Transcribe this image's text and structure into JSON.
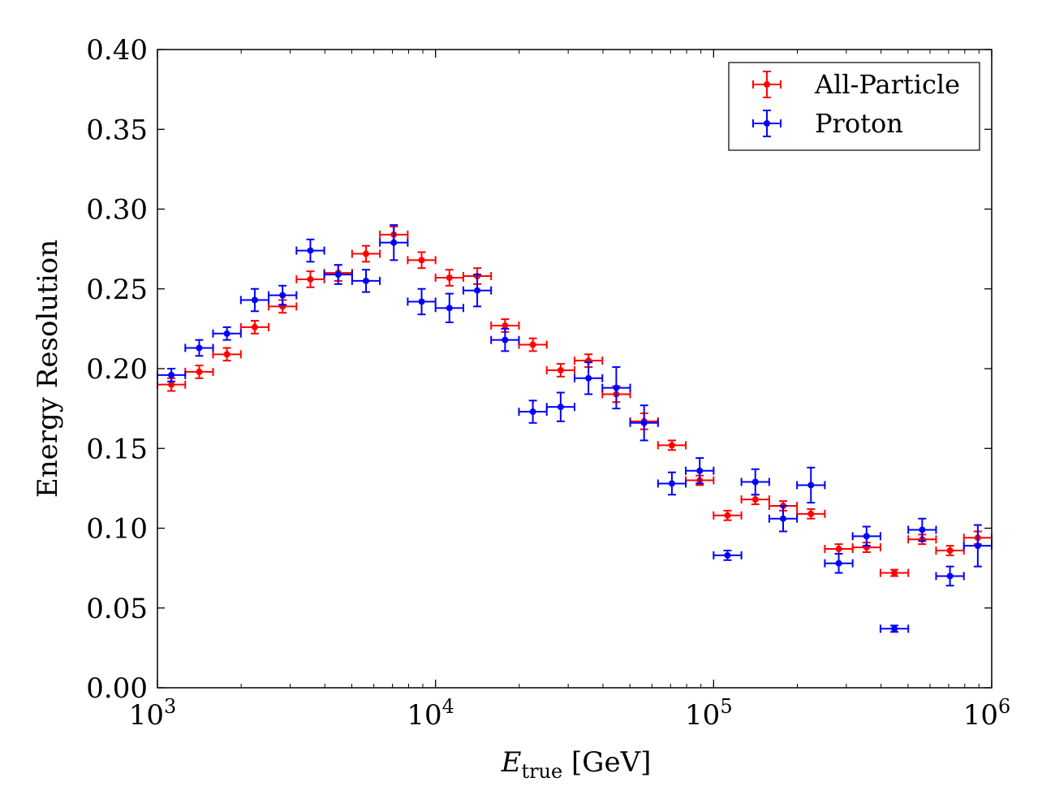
{
  "chart_data": {
    "type": "scatter",
    "title": "",
    "xlabel_main": "E",
    "xlabel_sub": "true",
    "xlabel_unit": " [GeV]",
    "ylabel": "Energy Resolution",
    "xscale": "log",
    "xlim": [
      1000,
      1000000
    ],
    "ylim": [
      0,
      0.4
    ],
    "xticks": [
      {
        "value": 1000,
        "base": "10",
        "exp": "3"
      },
      {
        "value": 10000,
        "base": "10",
        "exp": "4"
      },
      {
        "value": 100000,
        "base": "10",
        "exp": "5"
      },
      {
        "value": 1000000,
        "base": "10",
        "exp": "6"
      }
    ],
    "yticks": [
      {
        "value": 0.0,
        "label": "0.00"
      },
      {
        "value": 0.05,
        "label": "0.05"
      },
      {
        "value": 0.1,
        "label": "0.10"
      },
      {
        "value": 0.15,
        "label": "0.15"
      },
      {
        "value": 0.2,
        "label": "0.20"
      },
      {
        "value": 0.25,
        "label": "0.25"
      },
      {
        "value": 0.3,
        "label": "0.30"
      },
      {
        "value": 0.35,
        "label": "0.35"
      },
      {
        "value": 0.4,
        "label": "0.40"
      }
    ],
    "legend_position": "top-right",
    "series": [
      {
        "name": "All-Particle",
        "color": "#ff0000",
        "points": [
          {
            "x": 1122,
            "y": 0.19,
            "yerr": 0.004
          },
          {
            "x": 1413,
            "y": 0.198,
            "yerr": 0.004
          },
          {
            "x": 1778,
            "y": 0.209,
            "yerr": 0.004
          },
          {
            "x": 2239,
            "y": 0.226,
            "yerr": 0.004
          },
          {
            "x": 2818,
            "y": 0.239,
            "yerr": 0.004
          },
          {
            "x": 3548,
            "y": 0.256,
            "yerr": 0.005
          },
          {
            "x": 4467,
            "y": 0.26,
            "yerr": 0.005
          },
          {
            "x": 5623,
            "y": 0.272,
            "yerr": 0.005
          },
          {
            "x": 7079,
            "y": 0.284,
            "yerr": 0.005
          },
          {
            "x": 8913,
            "y": 0.268,
            "yerr": 0.005
          },
          {
            "x": 11220,
            "y": 0.257,
            "yerr": 0.005
          },
          {
            "x": 14125,
            "y": 0.258,
            "yerr": 0.005
          },
          {
            "x": 17783,
            "y": 0.227,
            "yerr": 0.004
          },
          {
            "x": 22387,
            "y": 0.215,
            "yerr": 0.004
          },
          {
            "x": 28184,
            "y": 0.199,
            "yerr": 0.004
          },
          {
            "x": 35481,
            "y": 0.205,
            "yerr": 0.004
          },
          {
            "x": 44668,
            "y": 0.184,
            "yerr": 0.005
          },
          {
            "x": 56234,
            "y": 0.167,
            "yerr": 0.005
          },
          {
            "x": 70795,
            "y": 0.152,
            "yerr": 0.003
          },
          {
            "x": 89125,
            "y": 0.13,
            "yerr": 0.003
          },
          {
            "x": 112202,
            "y": 0.108,
            "yerr": 0.003
          },
          {
            "x": 141254,
            "y": 0.118,
            "yerr": 0.003
          },
          {
            "x": 177828,
            "y": 0.114,
            "yerr": 0.003
          },
          {
            "x": 223872,
            "y": 0.109,
            "yerr": 0.003
          },
          {
            "x": 281838,
            "y": 0.087,
            "yerr": 0.003
          },
          {
            "x": 354813,
            "y": 0.088,
            "yerr": 0.003
          },
          {
            "x": 446684,
            "y": 0.072,
            "yerr": 0.002
          },
          {
            "x": 562341,
            "y": 0.093,
            "yerr": 0.003
          },
          {
            "x": 707946,
            "y": 0.086,
            "yerr": 0.003
          },
          {
            "x": 891251,
            "y": 0.094,
            "yerr": 0.004
          }
        ]
      },
      {
        "name": "Proton",
        "color": "#0000ff",
        "points": [
          {
            "x": 1122,
            "y": 0.196,
            "yerr": 0.004
          },
          {
            "x": 1413,
            "y": 0.213,
            "yerr": 0.005
          },
          {
            "x": 1778,
            "y": 0.222,
            "yerr": 0.004
          },
          {
            "x": 2239,
            "y": 0.243,
            "yerr": 0.007
          },
          {
            "x": 2818,
            "y": 0.246,
            "yerr": 0.006
          },
          {
            "x": 3548,
            "y": 0.274,
            "yerr": 0.007
          },
          {
            "x": 4467,
            "y": 0.259,
            "yerr": 0.006
          },
          {
            "x": 5623,
            "y": 0.255,
            "yerr": 0.007
          },
          {
            "x": 7079,
            "y": 0.279,
            "yerr": 0.011
          },
          {
            "x": 8913,
            "y": 0.242,
            "yerr": 0.008
          },
          {
            "x": 11220,
            "y": 0.238,
            "yerr": 0.009
          },
          {
            "x": 14125,
            "y": 0.249,
            "yerr": 0.01
          },
          {
            "x": 17783,
            "y": 0.218,
            "yerr": 0.007
          },
          {
            "x": 22387,
            "y": 0.173,
            "yerr": 0.007
          },
          {
            "x": 28184,
            "y": 0.176,
            "yerr": 0.009
          },
          {
            "x": 35481,
            "y": 0.194,
            "yerr": 0.01
          },
          {
            "x": 44668,
            "y": 0.188,
            "yerr": 0.013
          },
          {
            "x": 56234,
            "y": 0.166,
            "yerr": 0.011
          },
          {
            "x": 70795,
            "y": 0.128,
            "yerr": 0.007
          },
          {
            "x": 89125,
            "y": 0.136,
            "yerr": 0.008
          },
          {
            "x": 112202,
            "y": 0.083,
            "yerr": 0.003
          },
          {
            "x": 141254,
            "y": 0.129,
            "yerr": 0.008
          },
          {
            "x": 177828,
            "y": 0.106,
            "yerr": 0.008
          },
          {
            "x": 223872,
            "y": 0.127,
            "yerr": 0.011
          },
          {
            "x": 281838,
            "y": 0.078,
            "yerr": 0.006
          },
          {
            "x": 354813,
            "y": 0.095,
            "yerr": 0.006
          },
          {
            "x": 446684,
            "y": 0.037,
            "yerr": 0.002
          },
          {
            "x": 562341,
            "y": 0.099,
            "yerr": 0.007
          },
          {
            "x": 707946,
            "y": 0.07,
            "yerr": 0.006
          },
          {
            "x": 891251,
            "y": 0.089,
            "yerr": 0.013
          }
        ]
      }
    ]
  }
}
